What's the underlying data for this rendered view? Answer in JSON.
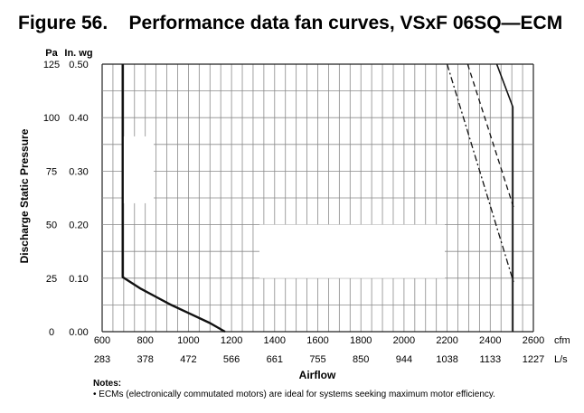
{
  "chart_data": {
    "type": "line",
    "title": "Figure 56.    Performance data fan curves, VSxF 06SQ—ECM",
    "xlabel": "Airflow",
    "ylabel": "Discharge Static Pressure",
    "x_unit_primary": "cfm",
    "x_unit_secondary": "L/s",
    "y_unit_primary": "In. wg",
    "y_unit_secondary": "Pa",
    "xlim": [
      600,
      2600
    ],
    "ylim": [
      0,
      0.5
    ],
    "x_ticks": [
      600,
      800,
      1000,
      1200,
      1400,
      1600,
      1800,
      2000,
      2200,
      2400,
      2600
    ],
    "x_tick_labels": [
      "600",
      "800",
      "1000",
      "1200",
      "1400",
      "1600",
      "1800",
      "2000",
      "2200",
      "2400",
      "2600"
    ],
    "x_secondary_tick_labels": [
      "283",
      "378",
      "472",
      "566",
      "661",
      "755",
      "850",
      "944",
      "1038",
      "1133",
      "1227"
    ],
    "y_ticks": [
      0,
      0.1,
      0.2,
      0.3,
      0.4,
      0.5
    ],
    "y_tick_labels": [
      "0.00",
      "0.10",
      "0.20",
      "0.30",
      "0.40",
      "0.50"
    ],
    "y_secondary_tick_labels": [
      "0",
      "25",
      "50",
      "75",
      "100",
      "125"
    ],
    "grid": true,
    "series": [
      {
        "style": "solid-thick",
        "x": [
          695,
          695,
          780,
          850,
          920,
          1000,
          1100,
          1170
        ],
        "y": [
          0.5,
          0.102,
          0.08,
          0.065,
          0.05,
          0.035,
          0.016,
          0.0
        ]
      },
      {
        "style": "dash-dot",
        "x": [
          2200,
          2510
        ],
        "y": [
          0.5,
          0.09
        ]
      },
      {
        "style": "dashed",
        "x": [
          2295,
          2510
        ],
        "y": [
          0.5,
          0.23
        ]
      },
      {
        "style": "solid",
        "x": [
          2430,
          2505,
          2505
        ],
        "y": [
          0.5,
          0.42,
          0.0
        ]
      }
    ],
    "notes": {
      "heading": "Notes:",
      "items": [
        "• ECMs (electronically commutated motors) are ideal for systems seeking maximum motor efficiency."
      ]
    }
  }
}
